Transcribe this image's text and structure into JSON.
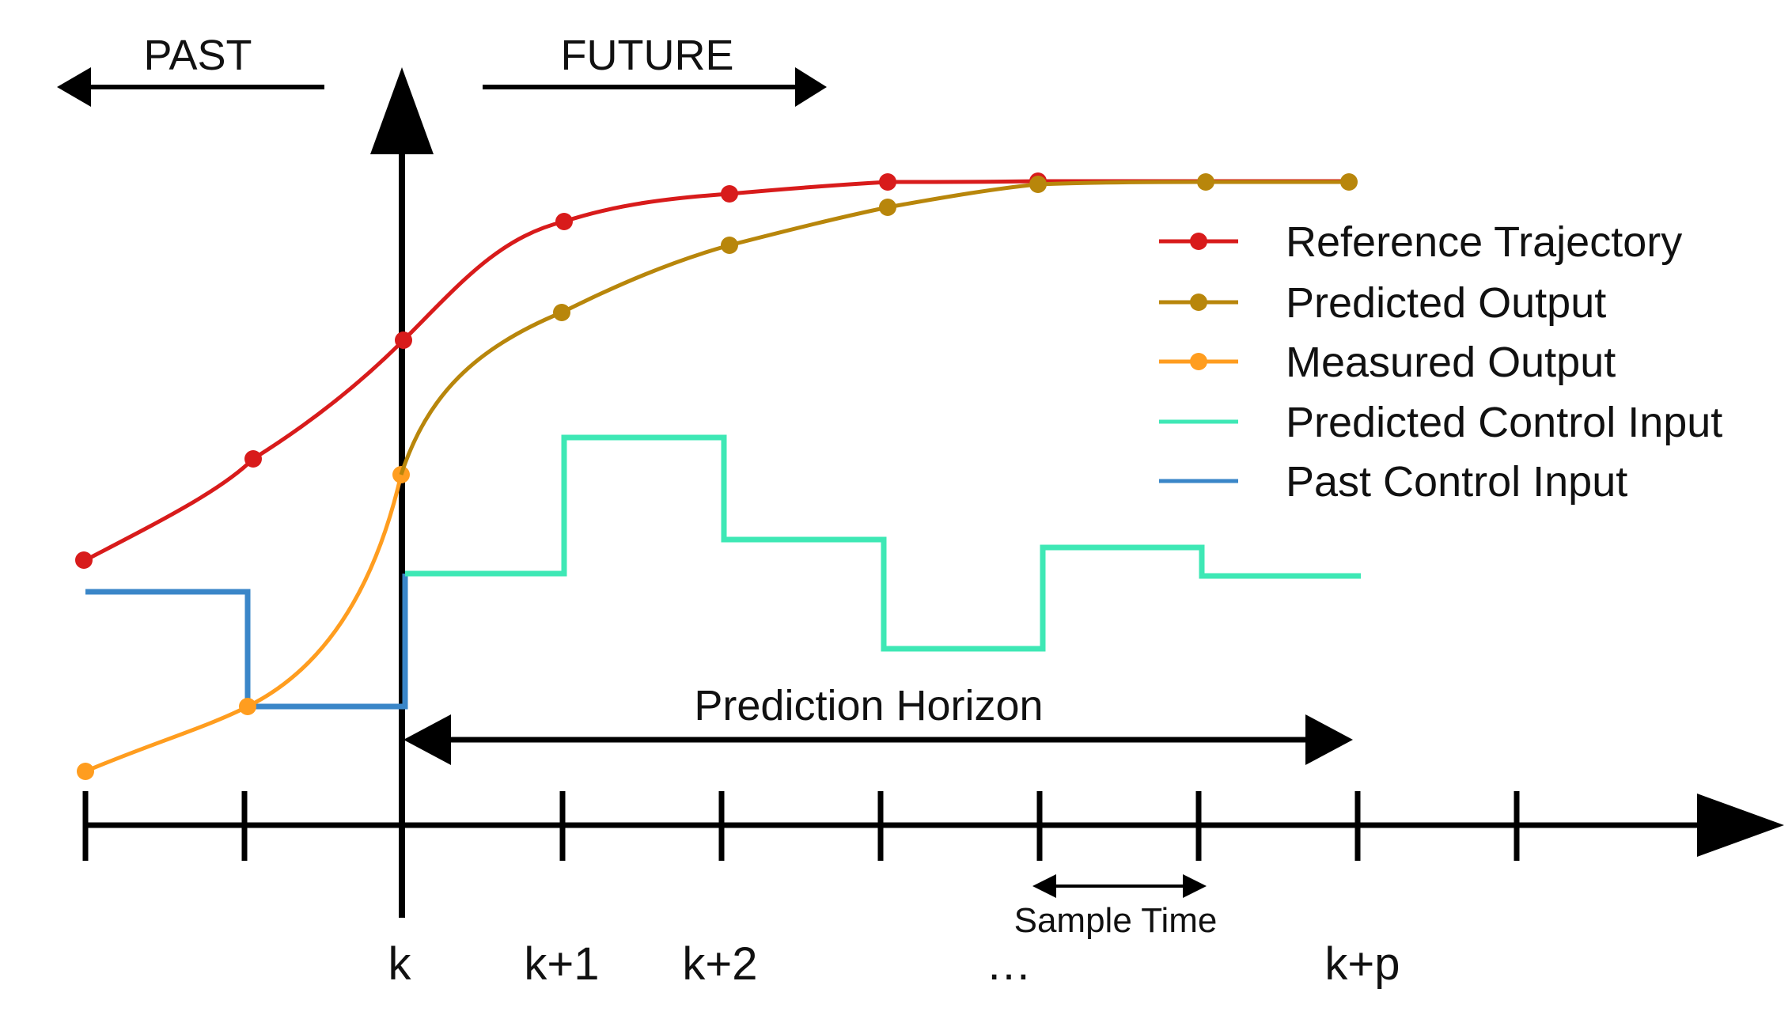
{
  "labels": {
    "past": "PAST",
    "future": "FUTURE",
    "prediction_horizon": "Prediction Horizon",
    "sample_time": "Sample Time"
  },
  "ticks": {
    "k": "k",
    "k1": "k+1",
    "k2": "k+2",
    "dots": "…",
    "kp": "k+p"
  },
  "legend": [
    {
      "label": "Reference Trajectory",
      "color": "#d81b1b",
      "marker": "dot"
    },
    {
      "label": "Predicted Output",
      "color": "#b8860b",
      "marker": "dot"
    },
    {
      "label": "Measured Output",
      "color": "#ff9d1f",
      "marker": "dot"
    },
    {
      "label": "Predicted Control Input",
      "color": "#3ee8b5",
      "marker": "none"
    },
    {
      "label": "Past Control Input",
      "color": "#3a86c8",
      "marker": "none"
    }
  ]
}
